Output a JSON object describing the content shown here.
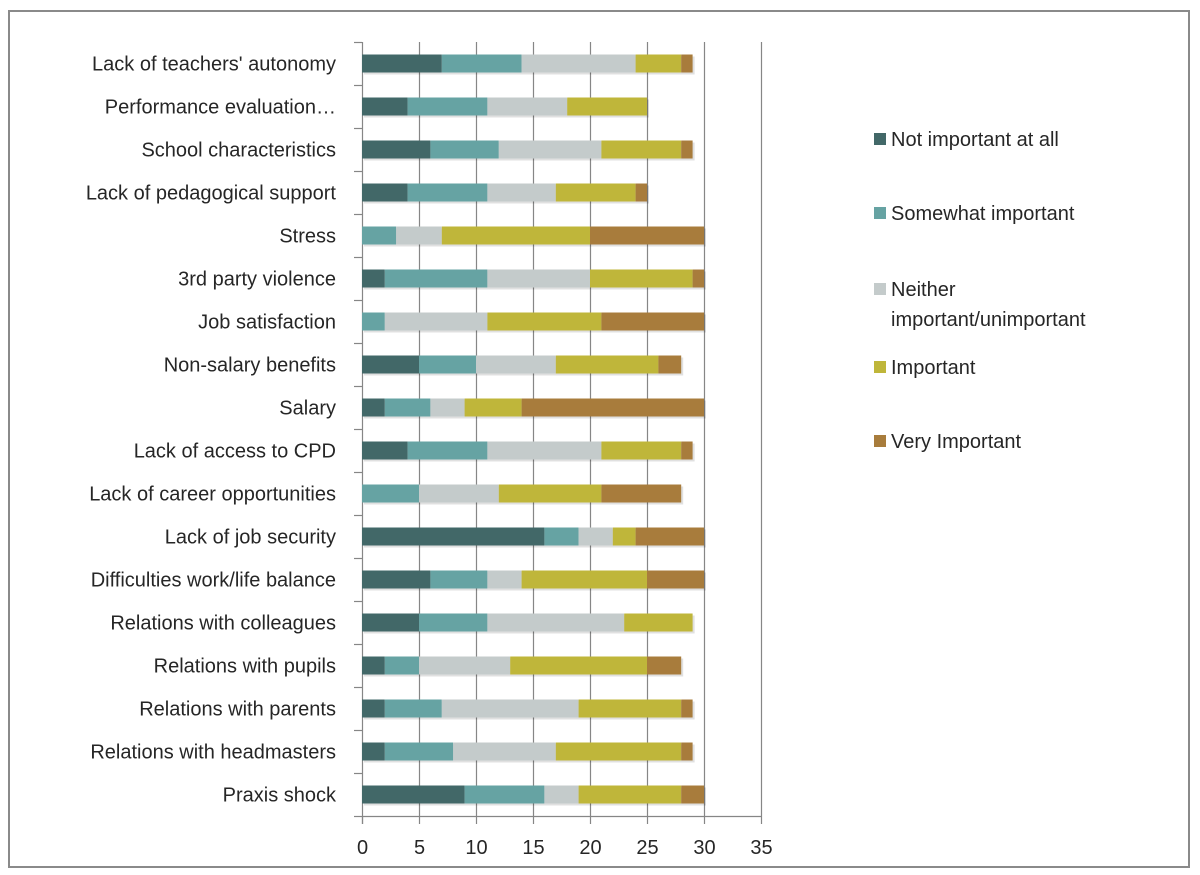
{
  "chart_data": {
    "type": "bar",
    "orientation": "horizontal",
    "stacked": true,
    "categories": [
      "Lack of teachers' autonomy",
      "Performance evaluation…",
      "School characteristics",
      "Lack of pedagogical support",
      "Stress",
      "3rd party violence",
      "Job satisfaction",
      "Non-salary benefits",
      "Salary",
      "Lack of access to CPD",
      "Lack of career opportunities",
      "Lack of job security",
      "Difficulties work/life balance",
      "Relations with colleagues",
      "Relations with pupils",
      "Relations with parents",
      "Relations with headmasters",
      "Praxis shock"
    ],
    "series": [
      {
        "name": "Not important at all",
        "color": "#426868",
        "values": [
          7,
          4,
          6,
          4,
          0,
          2,
          0,
          5,
          2,
          4,
          0,
          16,
          6,
          5,
          2,
          2,
          2,
          9
        ]
      },
      {
        "name": "Somewhat important",
        "color": "#66a3a3",
        "values": [
          7,
          7,
          6,
          7,
          3,
          9,
          2,
          5,
          4,
          7,
          5,
          3,
          5,
          6,
          3,
          5,
          6,
          7
        ]
      },
      {
        "name": "Neither important/unimportant",
        "color": "#c4cbcb",
        "values": [
          10,
          7,
          9,
          6,
          4,
          9,
          9,
          7,
          3,
          10,
          7,
          3,
          3,
          12,
          8,
          12,
          9,
          3
        ]
      },
      {
        "name": "Important",
        "color": "#bfb63a",
        "values": [
          4,
          7,
          7,
          7,
          13,
          9,
          10,
          9,
          5,
          7,
          9,
          2,
          11,
          6,
          12,
          9,
          11,
          9
        ]
      },
      {
        "name": "Very Important",
        "color": "#a87c3c",
        "values": [
          1,
          0,
          1,
          1,
          10,
          1,
          9,
          2,
          16,
          1,
          7,
          6,
          5,
          0,
          3,
          1,
          1,
          2
        ]
      }
    ],
    "xlim": [
      0,
      35
    ],
    "xticks": [
      0,
      5,
      10,
      15,
      20,
      25,
      30,
      35
    ],
    "grid": "vertical",
    "legend": "right",
    "title": "",
    "xlabel": "",
    "ylabel": ""
  }
}
